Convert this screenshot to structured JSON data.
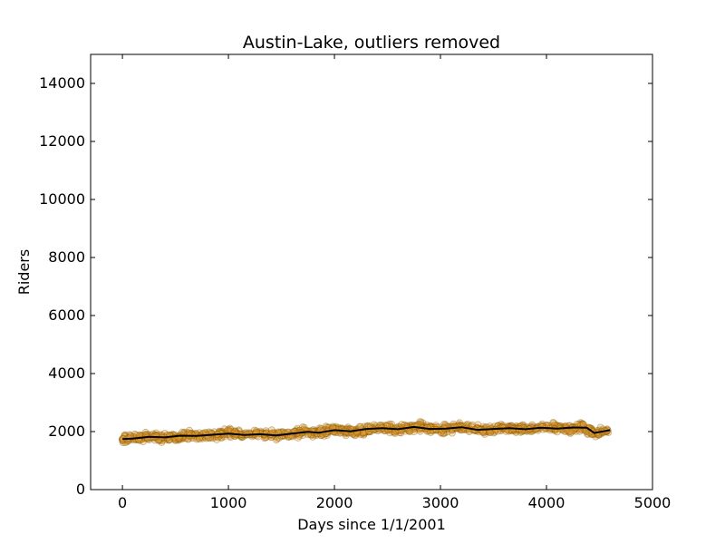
{
  "chart_data": {
    "type": "scatter",
    "title": "Austin-Lake, outliers removed",
    "xlabel": "Days since 1/1/2001",
    "ylabel": "Riders",
    "xlim": [
      -300,
      5000
    ],
    "ylim": [
      0,
      15000
    ],
    "xticks": [
      0,
      1000,
      2000,
      3000,
      4000,
      5000
    ],
    "yticks": [
      0,
      2000,
      4000,
      6000,
      8000,
      10000,
      12000,
      14000
    ],
    "grid": false,
    "colors": {
      "points_fill": "#e8a33a",
      "points_edge": "#8a5a00",
      "trend_line": "#000000"
    },
    "series": [
      {
        "kind": "points",
        "x_range": [
          0,
          4600
        ],
        "approx_count": 1200,
        "center_profile": [
          [
            0,
            1750
          ],
          [
            100,
            1760
          ],
          [
            250,
            1820
          ],
          [
            400,
            1800
          ],
          [
            600,
            1870
          ],
          [
            700,
            1850
          ],
          [
            900,
            1900
          ],
          [
            1000,
            1950
          ],
          [
            1150,
            1880
          ],
          [
            1300,
            1920
          ],
          [
            1500,
            1850
          ],
          [
            1700,
            1980
          ],
          [
            1800,
            1960
          ],
          [
            2000,
            2050
          ],
          [
            2200,
            2000
          ],
          [
            2400,
            2120
          ],
          [
            2600,
            2080
          ],
          [
            2800,
            2160
          ],
          [
            3000,
            2080
          ],
          [
            3200,
            2150
          ],
          [
            3400,
            2050
          ],
          [
            3600,
            2120
          ],
          [
            3800,
            2080
          ],
          [
            4000,
            2150
          ],
          [
            4200,
            2100
          ],
          [
            4350,
            2150
          ],
          [
            4450,
            1950
          ],
          [
            4600,
            2050
          ]
        ],
        "spread": 200
      },
      {
        "kind": "trend",
        "points": [
          [
            0,
            1740
          ],
          [
            100,
            1760
          ],
          [
            250,
            1820
          ],
          [
            400,
            1800
          ],
          [
            550,
            1860
          ],
          [
            700,
            1850
          ],
          [
            850,
            1890
          ],
          [
            1000,
            1930
          ],
          [
            1150,
            1880
          ],
          [
            1300,
            1910
          ],
          [
            1450,
            1870
          ],
          [
            1600,
            1930
          ],
          [
            1750,
            1990
          ],
          [
            1850,
            1960
          ],
          [
            2000,
            2050
          ],
          [
            2150,
            2010
          ],
          [
            2300,
            2090
          ],
          [
            2450,
            2120
          ],
          [
            2600,
            2080
          ],
          [
            2750,
            2160
          ],
          [
            2900,
            2090
          ],
          [
            3050,
            2100
          ],
          [
            3200,
            2150
          ],
          [
            3350,
            2060
          ],
          [
            3500,
            2090
          ],
          [
            3650,
            2120
          ],
          [
            3800,
            2080
          ],
          [
            3950,
            2130
          ],
          [
            4100,
            2100
          ],
          [
            4250,
            2140
          ],
          [
            4380,
            2130
          ],
          [
            4450,
            1950
          ],
          [
            4600,
            2050
          ]
        ]
      }
    ]
  }
}
